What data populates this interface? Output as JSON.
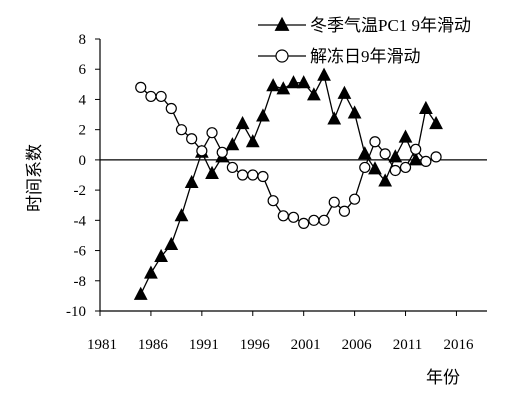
{
  "chart_data": {
    "type": "line",
    "title": "",
    "xlabel": "年份",
    "ylabel": "时间系数",
    "xlim": [
      1981,
      2019
    ],
    "ylim": [
      -10,
      8
    ],
    "xticks": [
      1981,
      1986,
      1991,
      1996,
      2001,
      2006,
      2011,
      2016
    ],
    "yticks": [
      -10,
      -8,
      -6,
      -4,
      -2,
      0,
      2,
      4,
      6,
      8
    ],
    "zero_line": true,
    "legend_position": "top-right",
    "series": [
      {
        "name": "冬季气温PC1 9年滑动",
        "marker": "filled-triangle",
        "color": "#000000",
        "x": [
          1985,
          1986,
          1987,
          1988,
          1989,
          1990,
          1991,
          1992,
          1993,
          1994,
          1995,
          1996,
          1997,
          1998,
          1999,
          2000,
          2001,
          2002,
          2003,
          2004,
          2005,
          2006,
          2007,
          2008,
          2009,
          2010,
          2011,
          2012,
          2013,
          2014
        ],
        "values": [
          -8.9,
          -7.5,
          -6.4,
          -5.6,
          -3.7,
          -1.5,
          0.5,
          -0.9,
          0.2,
          1.0,
          2.4,
          1.2,
          2.9,
          4.9,
          4.7,
          5.1,
          5.1,
          4.3,
          5.6,
          2.7,
          4.4,
          3.1,
          0.4,
          -0.6,
          -1.4,
          0.2,
          1.5,
          0.0,
          3.4,
          2.4
        ]
      },
      {
        "name": "解冻日9年滑动",
        "marker": "open-circle",
        "color": "#000000",
        "x": [
          1985,
          1986,
          1987,
          1988,
          1989,
          1990,
          1991,
          1992,
          1993,
          1994,
          1995,
          1996,
          1997,
          1998,
          1999,
          2000,
          2001,
          2002,
          2003,
          2004,
          2005,
          2006,
          2007,
          2008,
          2009,
          2010,
          2011,
          2012,
          2013,
          2014
        ],
        "values": [
          4.8,
          4.2,
          4.2,
          3.4,
          2.0,
          1.4,
          0.6,
          1.8,
          0.5,
          -0.5,
          -1.0,
          -1.0,
          -1.1,
          -2.7,
          -3.7,
          -3.8,
          -4.2,
          -4.0,
          -4.0,
          -2.8,
          -3.4,
          -2.6,
          -0.5,
          1.2,
          0.4,
          -0.7,
          -0.5,
          0.7,
          -0.1,
          0.2
        ]
      }
    ]
  }
}
